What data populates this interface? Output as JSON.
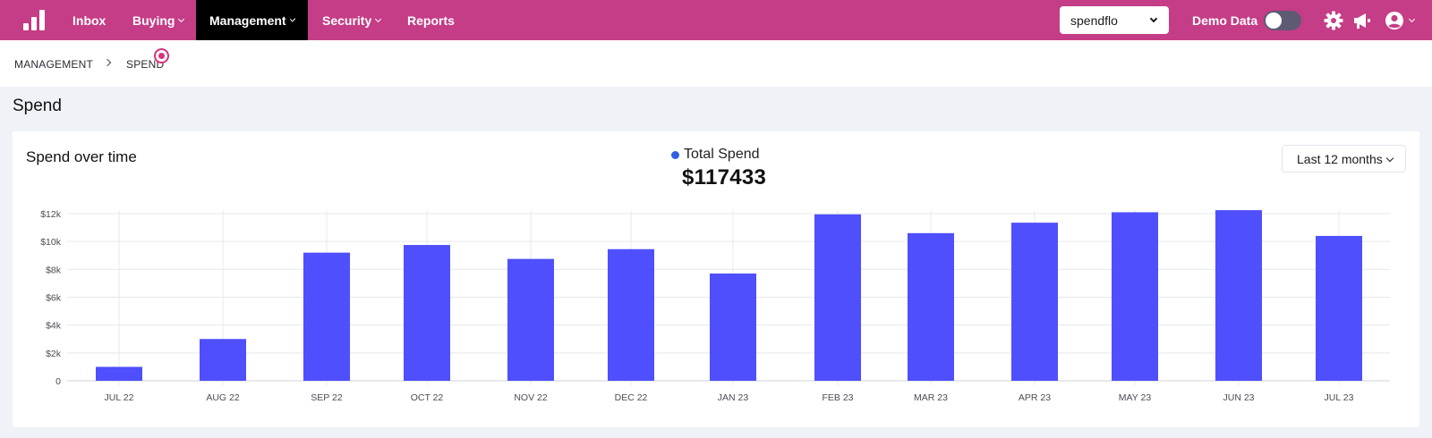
{
  "nav": {
    "items": [
      {
        "label": "Inbox",
        "has_menu": false,
        "active": false
      },
      {
        "label": "Buying",
        "has_menu": true,
        "active": false
      },
      {
        "label": "Management",
        "has_menu": true,
        "active": true
      },
      {
        "label": "Security",
        "has_menu": true,
        "active": false
      },
      {
        "label": "Reports",
        "has_menu": false,
        "active": false
      }
    ],
    "org_select_value": "spendflo",
    "demo_label": "Demo Data",
    "demo_enabled": false,
    "icons": [
      "bar-chart-logo-icon",
      "gear-icon",
      "megaphone-icon",
      "user-circle-icon"
    ]
  },
  "breadcrumb": {
    "items": [
      "MANAGEMENT",
      "SPEND"
    ]
  },
  "page": {
    "title": "Spend"
  },
  "card": {
    "title": "Spend over time",
    "legend_label": "Total Spend",
    "total": "$117433",
    "range_label": "Last 12 months"
  },
  "colors": {
    "nav_bg": "#c53d86",
    "nav_active": "#000000",
    "bar": "#4f4ffd",
    "legend_dot": "#2f5fe2",
    "pulse": "#d6337e"
  },
  "chart_data": {
    "type": "bar",
    "categories": [
      "JUL 22",
      "AUG 22",
      "SEP 22",
      "OCT 22",
      "NOV 22",
      "DEC 22",
      "JAN 23",
      "FEB 23",
      "MAR 23",
      "APR 23",
      "MAY 23",
      "JUN 23",
      "JUL 23"
    ],
    "series": [
      {
        "name": "Total Spend",
        "values": [
          1000,
          3000,
          9200,
          9750,
          8750,
          9450,
          7700,
          11950,
          10600,
          11350,
          12100,
          12250,
          10400
        ]
      }
    ],
    "ylim": [
      0,
      12000
    ],
    "yticks": [
      0,
      2000,
      4000,
      6000,
      8000,
      10000,
      12000
    ],
    "ytick_labels": [
      "0",
      "$2k",
      "$4k",
      "$6k",
      "$8k",
      "$10k",
      "$12k"
    ],
    "grid": true,
    "legend": "top-center"
  }
}
